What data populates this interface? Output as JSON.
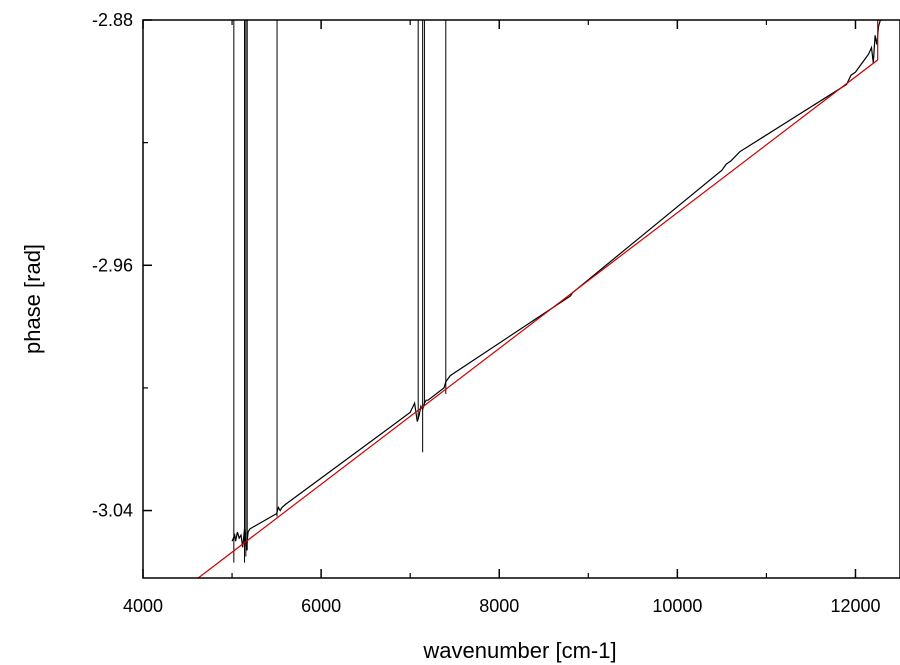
{
  "chart_data": {
    "type": "line",
    "title": "",
    "xlabel": "wavenumber [cm-1]",
    "ylabel": "phase [rad]",
    "xlim": [
      4000,
      12500
    ],
    "ylim": [
      -3.062,
      -2.88
    ],
    "x_ticks": [
      4000,
      6000,
      8000,
      10000,
      12000
    ],
    "y_ticks": [
      -2.88,
      -2.96,
      -3.04
    ],
    "x_tick_labels": [
      "4000",
      "6000",
      "8000",
      "10000",
      "12000"
    ],
    "y_tick_labels": [
      "-2.88",
      "-2.96",
      "-3.04"
    ],
    "grid": false,
    "legend": "none",
    "series": [
      {
        "color": "#000000",
        "style": "measured",
        "x": [
          5000,
          5030,
          5040,
          5060,
          5080,
          5100,
          5120,
          5140,
          5160,
          5180,
          5200,
          5500,
          5520,
          5540,
          5560,
          5600,
          7000,
          7050,
          7080,
          7100,
          7120,
          7140,
          7160,
          7180,
          7200,
          7380,
          7400,
          7450,
          8800,
          8820,
          10500,
          10550,
          10600,
          10700,
          11900,
          11950,
          12000,
          12050,
          12100,
          12150,
          12180,
          12200,
          12220,
          12240,
          12260,
          12280,
          12300
        ],
        "y": [
          -3.05,
          -3.048,
          -3.05,
          -3.047,
          -3.049,
          -3.048,
          -3.052,
          -3.046,
          -3.053,
          -3.047,
          -3.046,
          -3.041,
          -3.039,
          -3.04,
          -3.039,
          -3.038,
          -3.008,
          -3.005,
          -3.011,
          -3.009,
          -3.006,
          -3.007,
          -3.005,
          -3.004,
          -3.004,
          -3.0,
          -2.998,
          -2.996,
          -2.97,
          -2.969,
          -2.929,
          -2.927,
          -2.926,
          -2.923,
          -2.901,
          -2.898,
          -2.897,
          -2.895,
          -2.893,
          -2.891,
          -2.889,
          -2.894,
          -2.885,
          -2.888,
          -2.882,
          -2.88,
          -2.88
        ]
      },
      {
        "color": "#cc0000",
        "style": "fit",
        "x": [
          4620,
          12250,
          12250,
          12300
        ],
        "y": [
          -3.062,
          -2.893,
          -2.88,
          -2.88
        ]
      }
    ],
    "spikes": [
      {
        "x": 5020,
        "ymin": -3.057,
        "ymax": -2.88
      },
      {
        "x": 5140,
        "ymin": -3.057,
        "ymax": -2.88
      },
      {
        "x": 5155,
        "ymin": -3.055,
        "ymax": -2.88
      },
      {
        "x": 5170,
        "ymin": -3.053,
        "ymax": -2.88
      },
      {
        "x": 5505,
        "ymin": -3.042,
        "ymax": -2.88
      },
      {
        "x": 7090,
        "ymin": -3.01,
        "ymax": -2.88
      },
      {
        "x": 7140,
        "ymin": -3.021,
        "ymax": -2.88
      },
      {
        "x": 7160,
        "ymin": -3.006,
        "ymax": -2.88
      },
      {
        "x": 7400,
        "ymin": -3.002,
        "ymax": -2.88
      }
    ]
  }
}
